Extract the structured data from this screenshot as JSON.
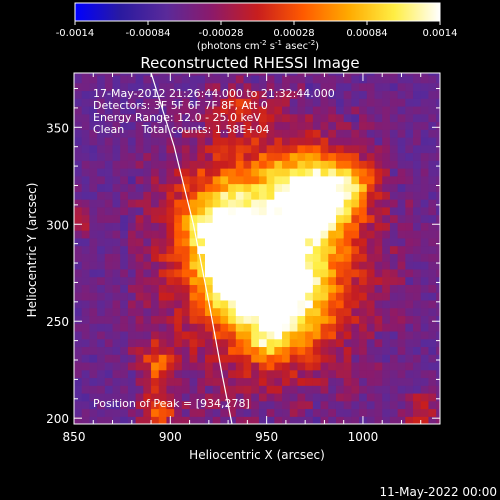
{
  "chart_data": {
    "type": "heatmap",
    "title": "Reconstructed RHESSI Image",
    "xlabel": "Heliocentric X (arcsec)",
    "ylabel": "Heliocentric Y (arcsec)",
    "xlim": [
      850,
      1040
    ],
    "ylim": [
      197,
      378
    ],
    "x_ticks": [
      "850",
      "900",
      "950",
      "1000"
    ],
    "x_tick_values": [
      850,
      900,
      950,
      1000
    ],
    "y_ticks": [
      "200",
      "250",
      "300",
      "350"
    ],
    "y_tick_values": [
      200,
      250,
      300,
      350
    ],
    "colorbar": {
      "ticks": [
        "-0.0014",
        "-0.00084",
        "-0.00028",
        "0.00028",
        "0.00084",
        "0.0014"
      ],
      "tick_values": [
        -0.0014,
        -0.00084,
        -0.00028,
        0.00028,
        0.00084,
        0.0014
      ],
      "range": [
        -0.0014,
        0.0014
      ],
      "colormap": [
        "#0000ff",
        "#2a1aa0",
        "#5a2a9a",
        "#8c1a6a",
        "#c81e1e",
        "#ff5a00",
        "#ffaa00",
        "#ffee44",
        "#ffffff"
      ],
      "units_line": "(photons cm",
      "units_exp1": "-2",
      "units_mid": " s",
      "units_exp2": "-1",
      "units_mid2": " asec",
      "units_exp3": "-2",
      "units_end": ")"
    },
    "info_lines": [
      "17-May-2012 21:26:44.000 to 21:32:44.000",
      "Detectors: 3F 5F 6F 7F 8F, Att 0",
      "Energy Range: 12.0 - 25.0 keV",
      "Clean     Total counts: 1.58E+04"
    ],
    "peak_label": "Position of Peak = [934,278]",
    "peak": {
      "x": 934,
      "y": 278
    },
    "limb_curve": [
      [
        890,
        378
      ],
      [
        902,
        340
      ],
      [
        912,
        300
      ],
      [
        920,
        260
      ],
      [
        927,
        222
      ],
      [
        932,
        197
      ]
    ],
    "emission_blobs": [
      {
        "x": 950,
        "y": 285,
        "sx": 32,
        "sy": 38,
        "amp": 0.9
      },
      {
        "x": 938,
        "y": 276,
        "sx": 12,
        "sy": 12,
        "amp": 1.0
      },
      {
        "x": 975,
        "y": 315,
        "sx": 14,
        "sy": 14,
        "amp": 0.85
      },
      {
        "x": 958,
        "y": 262,
        "sx": 14,
        "sy": 16,
        "amp": 0.6
      },
      {
        "x": 925,
        "y": 300,
        "sx": 14,
        "sy": 14,
        "amp": 0.5
      },
      {
        "x": 995,
        "y": 322,
        "sx": 8,
        "sy": 8,
        "amp": 0.35
      },
      {
        "x": 893,
        "y": 228,
        "sx": 7,
        "sy": 9,
        "amp": 0.4
      },
      {
        "x": 895,
        "y": 204,
        "sx": 7,
        "sy": 6,
        "amp": 0.45
      },
      {
        "x": 1030,
        "y": 204,
        "sx": 6,
        "sy": 6,
        "amp": 0.35
      },
      {
        "x": 935,
        "y": 362,
        "sx": 10,
        "sy": 6,
        "amp": 0.2
      },
      {
        "x": 855,
        "y": 303,
        "sx": 5,
        "sy": 5,
        "amp": 0.2
      },
      {
        "x": 950,
        "y": 240,
        "sx": 6,
        "sy": 6,
        "amp": 0.3
      }
    ]
  },
  "footer": {
    "date": "11-May-2022 00:00"
  }
}
